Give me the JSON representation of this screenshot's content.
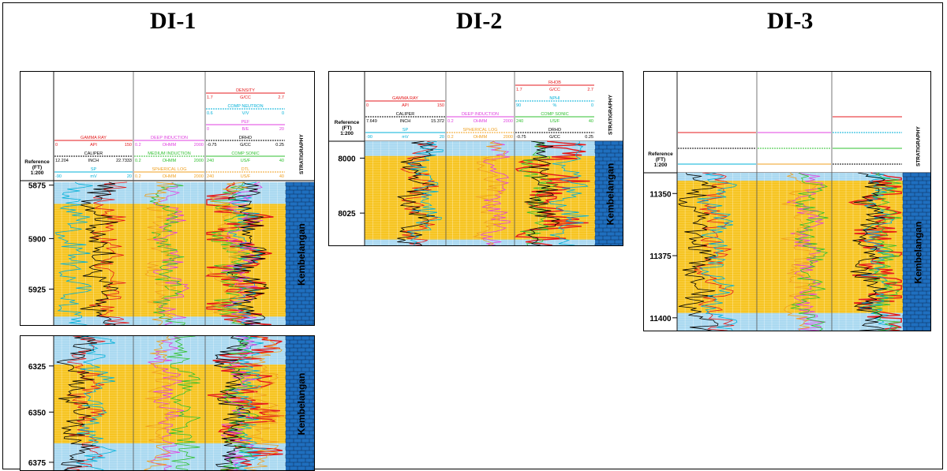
{
  "wells": [
    {
      "name": "DI-1",
      "ref_label": [
        "Reference",
        "(FT)",
        "1:200"
      ],
      "formation": "Kembelangan",
      "strat_label": "STRATIGRAPHY",
      "tracks": [
        {
          "curves": [
            {
              "name": "GAMMA RAY",
              "min": "0",
              "unit": "API",
              "max": "150",
              "color": "#e41a1c"
            },
            {
              "name": "CALIPER",
              "min": "12.204",
              "unit": "INCH",
              "max": "22.7333",
              "color": "#000000"
            },
            {
              "name": "SP",
              "min": "-90",
              "unit": "mV",
              "max": "20",
              "color": "#00b0d8"
            }
          ]
        },
        {
          "curves": [
            {
              "name": "DEEP INDUCTION",
              "min": "0.2",
              "unit": "OHMM",
              "max": "2000",
              "color": "#e040e0"
            },
            {
              "name": "MEDIUM INDUCTION",
              "min": "0.2",
              "unit": "OHMM",
              "max": "2000",
              "color": "#30c030"
            },
            {
              "name": "SPHERICAL LOG",
              "min": "0.2",
              "unit": "OHMM",
              "max": "2000",
              "color": "#f0a020"
            }
          ]
        },
        {
          "curves": [
            {
              "name": "DENSITY",
              "min": "1.7",
              "unit": "G/CC",
              "max": "2.7",
              "color": "#e41a1c"
            },
            {
              "name": "COMP NEUTRON",
              "min": "0.6",
              "unit": "V/V",
              "max": "0",
              "color": "#00b0d8"
            },
            {
              "name": "PEF",
              "min": "0",
              "unit": "B/E",
              "max": "20",
              "color": "#e040e0"
            },
            {
              "name": "DRHO",
              "min": "-0.75",
              "unit": "G/CC",
              "max": "0.25",
              "color": "#000000"
            },
            {
              "name": "COMP SONIC",
              "min": "240",
              "unit": "US/F",
              "max": "40",
              "color": "#30c030"
            },
            {
              "name": "DTL",
              "min": "240",
              "unit": "US/F",
              "max": "40",
              "color": "#f0a020"
            }
          ]
        }
      ],
      "sections": [
        {
          "depth_ticks": [
            "5875",
            "5900",
            "5925"
          ]
        },
        {
          "depth_ticks": [
            "6325",
            "6350",
            "6375"
          ]
        }
      ]
    },
    {
      "name": "DI-2",
      "ref_label": [
        "Reference",
        "(FT)",
        "1:200"
      ],
      "formation": "Kembelangan",
      "strat_label": "STRATIGRAPHY",
      "tracks": [
        {
          "curves": [
            {
              "name": "GAMMA RAY",
              "min": "0",
              "unit": "API",
              "max": "150",
              "color": "#e41a1c"
            },
            {
              "name": "CALIPER",
              "min": "7.649",
              "unit": "INCH",
              "max": "15.372",
              "color": "#000000"
            },
            {
              "name": "SP",
              "min": "-90",
              "unit": "mV",
              "max": "20",
              "color": "#00b0d8"
            }
          ]
        },
        {
          "curves": [
            {
              "name": "DEEP INDUCTION",
              "min": "0.2",
              "unit": "OHMM",
              "max": "2000",
              "color": "#e040e0"
            },
            {
              "name": "SPHERICAL LOG",
              "min": "0.2",
              "unit": "OHMM",
              "max": "2000",
              "color": "#f0a020"
            }
          ]
        },
        {
          "curves": [
            {
              "name": "RHOB",
              "min": "1.7",
              "unit": "G/CC",
              "max": "2.7",
              "color": "#e41a1c"
            },
            {
              "name": "NPHI",
              "min": "90",
              "unit": "%",
              "max": "0",
              "color": "#00b0d8"
            },
            {
              "name": "COMP SONIC",
              "min": "240",
              "unit": "US/F",
              "max": "40",
              "color": "#30c030"
            },
            {
              "name": "DRHO",
              "min": "-0.75",
              "unit": "G/CC",
              "max": "0.25",
              "color": "#000000"
            }
          ]
        }
      ],
      "sections": [
        {
          "depth_ticks": [
            "8000",
            "8025"
          ]
        }
      ]
    },
    {
      "name": "DI-3",
      "ref_label": [
        "Reference",
        "(FT)",
        "1:200"
      ],
      "formation": "Kembelangan",
      "strat_label": "STRATIGRAPHY",
      "tracks": [
        {
          "curves": [
            {
              "name": "",
              "min": "",
              "unit": "",
              "max": "",
              "color": "#e41a1c"
            },
            {
              "name": "",
              "min": "",
              "unit": "",
              "max": "",
              "color": "#000000"
            },
            {
              "name": "",
              "min": "",
              "unit": "",
              "max": "",
              "color": "#00b0d8"
            }
          ]
        },
        {
          "curves": [
            {
              "name": "",
              "min": "",
              "unit": "",
              "max": "",
              "color": "#e040e0"
            },
            {
              "name": "",
              "min": "",
              "unit": "",
              "max": "",
              "color": "#30c030"
            },
            {
              "name": "",
              "min": "",
              "unit": "",
              "max": "",
              "color": "#f0a020"
            }
          ]
        },
        {
          "curves": [
            {
              "name": "",
              "min": "",
              "unit": "",
              "max": "",
              "color": "#e41a1c"
            },
            {
              "name": "",
              "min": "",
              "unit": "",
              "max": "",
              "color": "#00b0d8"
            },
            {
              "name": "",
              "min": "",
              "unit": "",
              "max": "",
              "color": "#30c030"
            },
            {
              "name": "",
              "min": "",
              "unit": "",
              "max": "",
              "color": "#000000"
            }
          ]
        }
      ],
      "sections": [
        {
          "depth_ticks": [
            "11350",
            "11375",
            "11400"
          ]
        }
      ]
    }
  ],
  "colors": {
    "water": "#a8d8f0",
    "sand": "#f6c21a",
    "strat": "#1f6fbf"
  }
}
